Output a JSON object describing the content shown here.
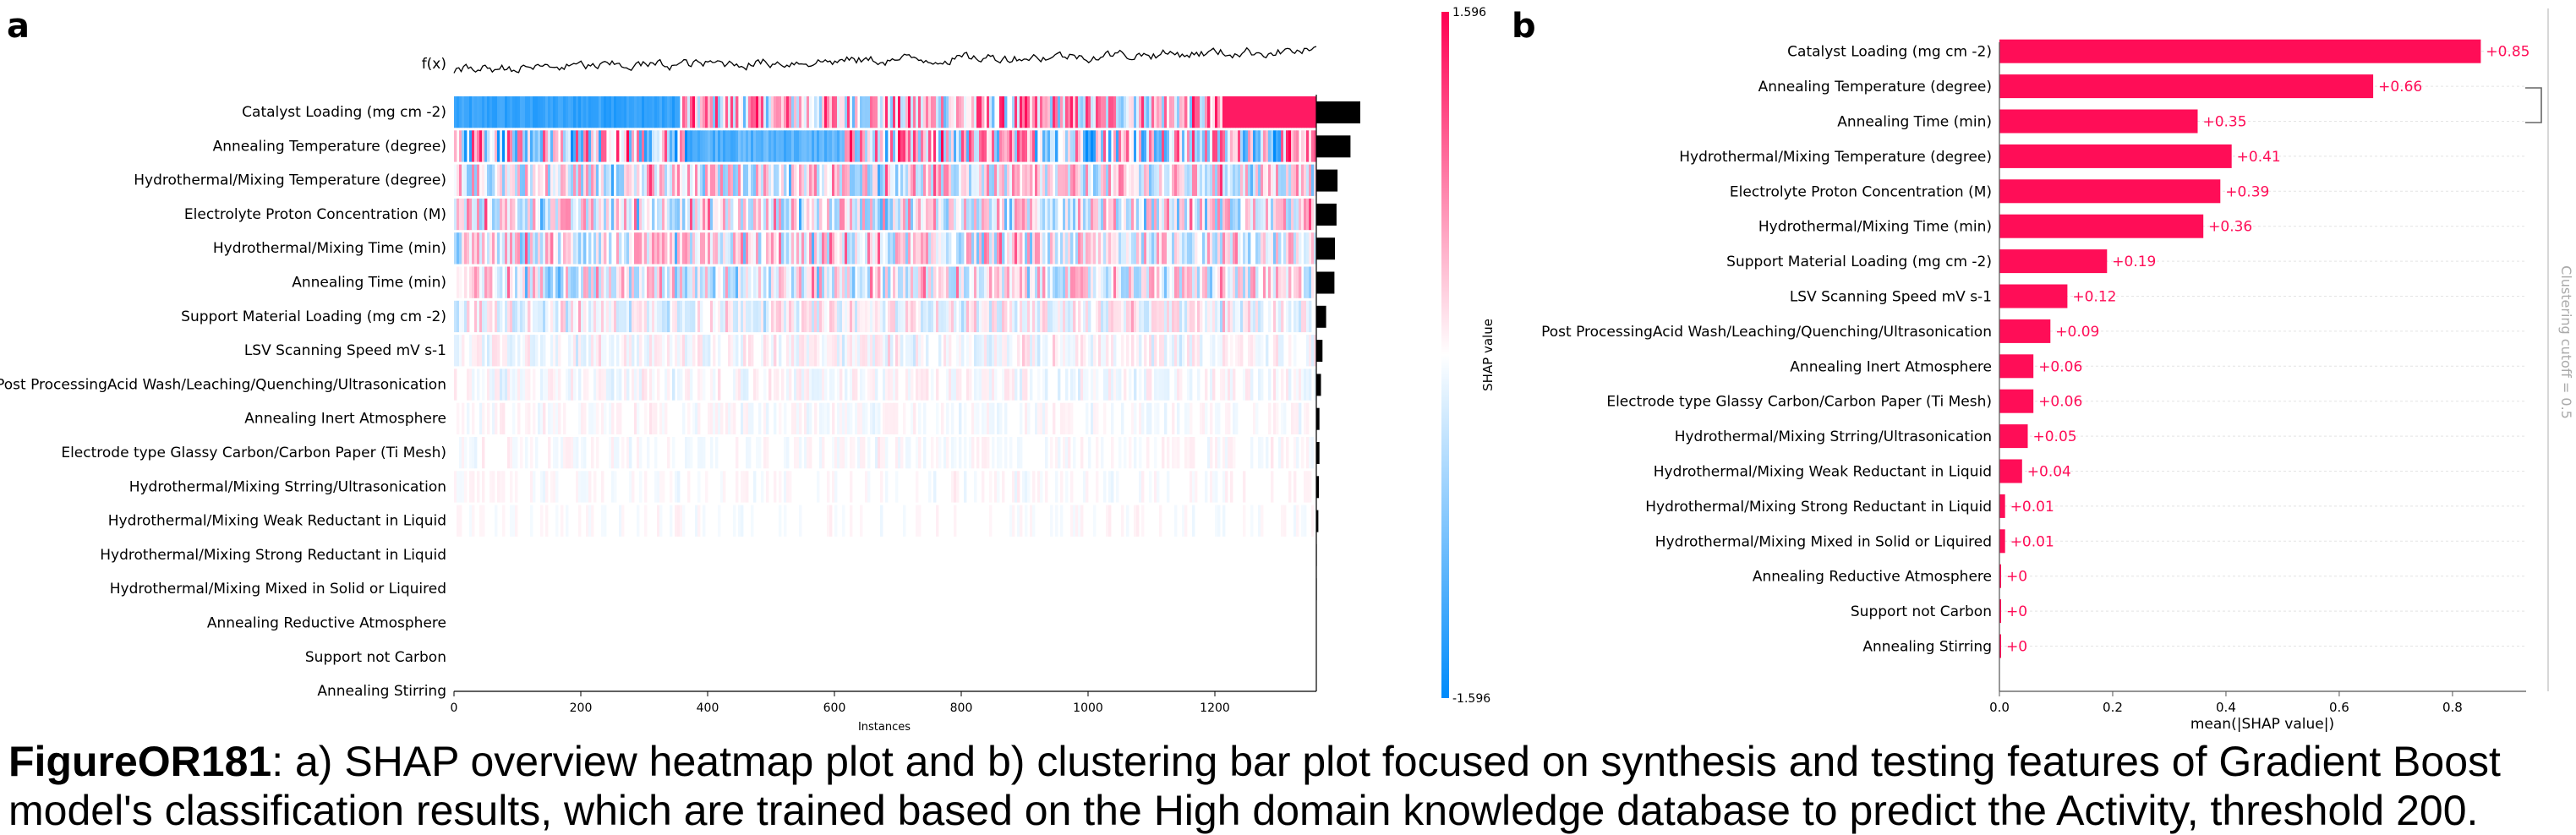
{
  "panel_a_label": "a",
  "panel_b_label": "b",
  "caption": {
    "figure_id": "FigureOR181",
    "text": ": a) SHAP overview heatmap plot and b) clustering bar plot focused on synthesis and testing features of Gradient Boost model's classification results, which are trained based on the High domain knowledge database to predict the Activity, threshold 200."
  },
  "colors": {
    "positive": "#ff0052",
    "negative": "#008bfb",
    "bar": "#ff0d57",
    "importance_bar": "#000000"
  },
  "chart_data": [
    {
      "type": "heatmap",
      "fx_label": "f(x)",
      "xlabel": "Instances",
      "xlim": [
        0,
        1360
      ],
      "xticks": [
        0,
        200,
        400,
        600,
        800,
        1000,
        1200
      ],
      "colorbar": {
        "label": "SHAP value",
        "max_label": "1.596",
        "min_label": "-1.596",
        "range": [
          -1.596,
          1.596
        ]
      },
      "features": [
        {
          "name": "Catalyst Loading (mg cm -2)",
          "importance": 0.85
        },
        {
          "name": "Annealing Temperature (degree)",
          "importance": 0.66
        },
        {
          "name": "Hydrothermal/Mixing Temperature (degree)",
          "importance": 0.41
        },
        {
          "name": "Electrolyte Proton Concentration (M)",
          "importance": 0.39
        },
        {
          "name": "Hydrothermal/Mixing Time (min)",
          "importance": 0.36
        },
        {
          "name": "Annealing Time (min)",
          "importance": 0.35
        },
        {
          "name": "Support Material Loading (mg cm -2)",
          "importance": 0.19
        },
        {
          "name": "LSV Scanning Speed mV s-1",
          "importance": 0.12
        },
        {
          "name": "Post ProcessingAcid Wash/Leaching/Quenching/Ultrasonication",
          "importance": 0.09
        },
        {
          "name": "Annealing Inert Atmosphere",
          "importance": 0.06
        },
        {
          "name": "Electrode type Glassy Carbon/Carbon Paper (Ti Mesh)",
          "importance": 0.06
        },
        {
          "name": "Hydrothermal/Mixing Strring/Ultrasonication",
          "importance": 0.05
        },
        {
          "name": "Hydrothermal/Mixing Weak Reductant in Liquid",
          "importance": 0.04
        },
        {
          "name": "Hydrothermal/Mixing Strong Reductant in Liquid",
          "importance": 0.01
        },
        {
          "name": "Hydrothermal/Mixing Mixed in Solid or Liquired",
          "importance": 0.01
        },
        {
          "name": "Annealing Reductive Atmosphere",
          "importance": 0.0
        },
        {
          "name": "Support not Carbon",
          "importance": 0.0
        },
        {
          "name": "Annealing Stirring",
          "importance": 0.0
        }
      ]
    },
    {
      "type": "bar",
      "orientation": "horizontal",
      "xlabel": "mean(|SHAP value|)",
      "xlim": [
        0,
        0.93
      ],
      "xticks": [
        0.0,
        0.2,
        0.4,
        0.6,
        0.8
      ],
      "xtick_labels": [
        "0.0",
        "0.2",
        "0.4",
        "0.6",
        "0.8"
      ],
      "cluster_label": "Clustering cutoff = 0.5",
      "categories": [
        "Catalyst Loading (mg cm -2)",
        "Annealing Temperature (degree)",
        "Annealing Time (min)",
        "Hydrothermal/Mixing Temperature (degree)",
        "Electrolyte Proton Concentration (M)",
        "Hydrothermal/Mixing Time (min)",
        "Support Material Loading (mg cm -2)",
        "LSV Scanning Speed mV s-1",
        "Post ProcessingAcid Wash/Leaching/Quenching/Ultrasonication",
        "Annealing Inert Atmosphere",
        "Electrode type Glassy Carbon/Carbon Paper (Ti Mesh)",
        "Hydrothermal/Mixing Strring/Ultrasonication",
        "Hydrothermal/Mixing Weak Reductant in Liquid",
        "Hydrothermal/Mixing Strong Reductant in Liquid",
        "Hydrothermal/Mixing Mixed in Solid or Liquired",
        "Annealing Reductive Atmosphere",
        "Support not Carbon",
        "Annealing Stirring"
      ],
      "values": [
        0.85,
        0.66,
        0.35,
        0.41,
        0.39,
        0.36,
        0.19,
        0.12,
        0.09,
        0.06,
        0.06,
        0.05,
        0.04,
        0.01,
        0.01,
        0,
        0,
        0
      ],
      "value_labels": [
        "+0.85",
        "+0.66",
        "+0.35",
        "+0.41",
        "+0.39",
        "+0.36",
        "+0.19",
        "+0.12",
        "+0.09",
        "+0.06",
        "+0.06",
        "+0.05",
        "+0.04",
        "+0.01",
        "+0.01",
        "+0",
        "+0",
        "+0"
      ]
    }
  ]
}
